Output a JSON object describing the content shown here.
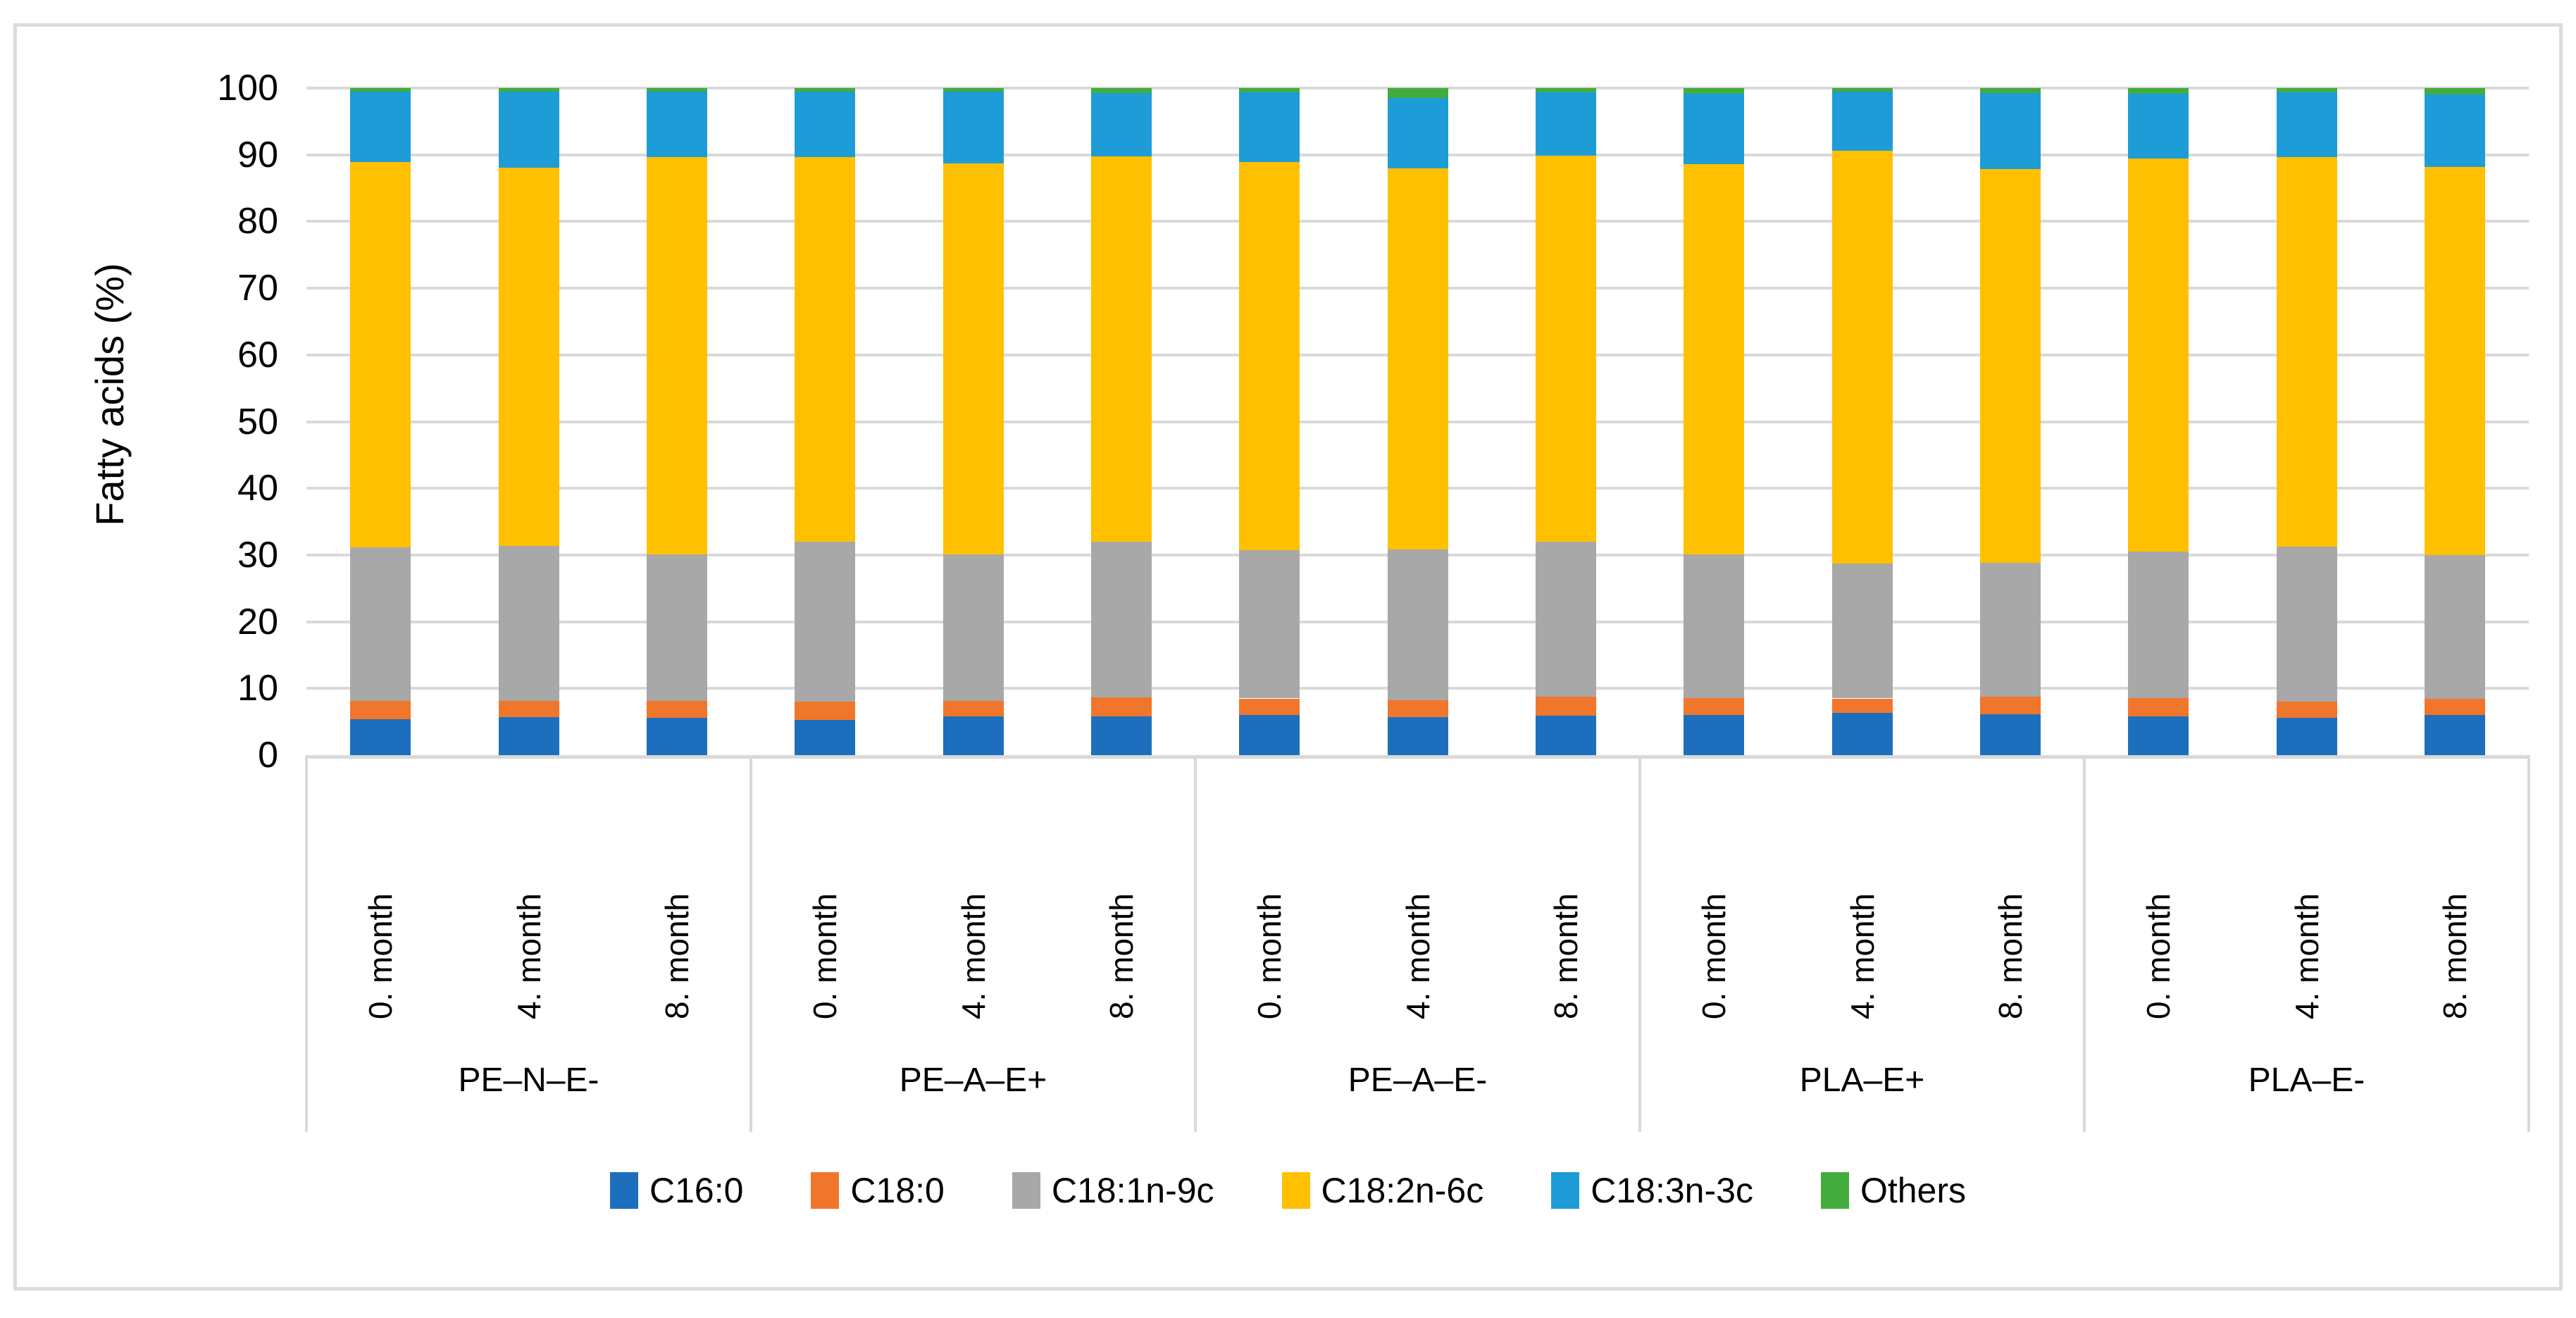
{
  "figure": {
    "background": "#FFFFFF",
    "border_color": "#DCDCDC",
    "gridline_color": "#D9D9D9",
    "axis_line_color": "#D9D9D9",
    "table_line_color": "#D9D9D9",
    "text_color": "#000000"
  },
  "chart_data": {
    "type": "bar",
    "stacked": true,
    "title": "",
    "xlabel": "",
    "ylabel": "Fatty acids (%)",
    "ylim": [
      0,
      100
    ],
    "ytick_step": 10,
    "yticks": [
      0,
      10,
      20,
      30,
      40,
      50,
      60,
      70,
      80,
      90,
      100
    ],
    "grid": true,
    "legend_position": "bottom",
    "groups": [
      "PE–N–E-",
      "PE–A–E+",
      "PE–A–E-",
      "PLA–E+",
      "PLA–E-"
    ],
    "month_labels": [
      "0. month",
      "4. month",
      "8. month"
    ],
    "categories": [
      {
        "group": "PE–N–E-",
        "month": "0. month"
      },
      {
        "group": "PE–N–E-",
        "month": "4. month"
      },
      {
        "group": "PE–N–E-",
        "month": "8. month"
      },
      {
        "group": "PE–A–E+",
        "month": "0. month"
      },
      {
        "group": "PE–A–E+",
        "month": "4. month"
      },
      {
        "group": "PE–A–E+",
        "month": "8. month"
      },
      {
        "group": "PE–A–E-",
        "month": "0. month"
      },
      {
        "group": "PE–A–E-",
        "month": "4. month"
      },
      {
        "group": "PE–A–E-",
        "month": "8. month"
      },
      {
        "group": "PLA–E+",
        "month": "0. month"
      },
      {
        "group": "PLA–E+",
        "month": "4. month"
      },
      {
        "group": "PLA–E+",
        "month": "8. month"
      },
      {
        "group": "PLA–E-",
        "month": "0. month"
      },
      {
        "group": "PLA–E-",
        "month": "4. month"
      },
      {
        "group": "PLA–E-",
        "month": "8. month"
      }
    ],
    "series": [
      {
        "name": "C16:0",
        "color": "#1D6FBE",
        "values": [
          5.4,
          5.7,
          5.6,
          5.3,
          5.8,
          5.8,
          6.0,
          5.7,
          5.9,
          6.0,
          6.3,
          6.1,
          5.8,
          5.6,
          6.0
        ]
      },
      {
        "name": "C18:0",
        "color": "#F0762C",
        "values": [
          2.7,
          2.4,
          2.5,
          2.7,
          2.3,
          2.9,
          2.5,
          2.5,
          2.9,
          2.6,
          2.2,
          2.7,
          2.8,
          2.4,
          2.4
        ]
      },
      {
        "name": "C18:1n-9c",
        "color": "#A8A8A8",
        "values": [
          23.0,
          23.3,
          22.0,
          24.0,
          22.0,
          23.3,
          22.2,
          22.6,
          23.2,
          21.5,
          20.2,
          20.0,
          21.9,
          23.3,
          21.6
        ]
      },
      {
        "name": "C18:2n-6c",
        "color": "#FFC000",
        "values": [
          57.8,
          56.7,
          59.5,
          57.7,
          58.6,
          57.8,
          58.2,
          57.2,
          57.9,
          58.5,
          61.9,
          59.1,
          58.9,
          58.3,
          58.2
        ]
      },
      {
        "name": "C18:3n-3c",
        "color": "#1E9CD8",
        "values": [
          10.6,
          11.4,
          9.9,
          9.8,
          10.8,
          9.5,
          10.5,
          10.5,
          9.5,
          10.6,
          8.9,
          11.4,
          9.8,
          9.8,
          10.8
        ]
      },
      {
        "name": "Others",
        "color": "#43AC3C",
        "values": [
          0.5,
          0.5,
          0.5,
          0.5,
          0.5,
          0.7,
          0.6,
          1.5,
          0.6,
          0.8,
          0.5,
          0.7,
          0.8,
          0.6,
          1.0
        ]
      }
    ]
  }
}
